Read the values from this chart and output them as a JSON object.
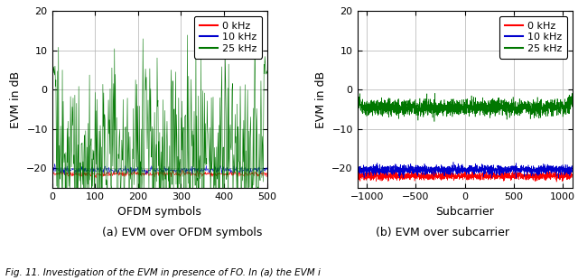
{
  "left_plot": {
    "xlabel": "OFDM symbols",
    "ylabel": "EVM in dB",
    "xlim": [
      0,
      500
    ],
    "ylim": [
      -25,
      20
    ],
    "yticks": [
      -20,
      -10,
      0,
      10,
      20
    ],
    "xticks": [
      0,
      100,
      200,
      300,
      400,
      500
    ],
    "caption": "(a) EVM over OFDM symbols",
    "series": [
      {
        "label": "0 kHz",
        "color": "#ff0000",
        "mean": -21.5,
        "noise": 0.35,
        "n": 500
      },
      {
        "label": "10 kHz",
        "color": "#0000cd",
        "mean": -20.5,
        "noise": 0.4,
        "n": 500
      },
      {
        "label": "25 kHz",
        "color": "#007700",
        "mean": -17.0,
        "noise": 11.0,
        "n": 500,
        "edge_spike_mean": 5.0,
        "edge_spike_noise": 1.5,
        "edge_n": 8
      }
    ]
  },
  "right_plot": {
    "xlabel": "Subcarrier",
    "ylabel": "EVM in dB",
    "xlim": [
      -1100,
      1100
    ],
    "ylim": [
      -25,
      20
    ],
    "yticks": [
      -20,
      -10,
      0,
      10,
      20
    ],
    "xticks": [
      -1000,
      -500,
      0,
      500,
      1000
    ],
    "caption": "(b) EVM over subcarrier",
    "series": [
      {
        "label": "0 kHz",
        "color": "#ff0000",
        "mean": -22.0,
        "noise": 0.5,
        "n": 2048
      },
      {
        "label": "10 kHz",
        "color": "#0000cd",
        "mean": -20.5,
        "noise": 0.6,
        "n": 2048
      },
      {
        "label": "25 kHz",
        "color": "#007700",
        "mean": -4.5,
        "noise": 1.0,
        "n": 2048,
        "edge_spike_mean": -3.0,
        "edge_spike_noise": 1.0,
        "edge_n": 30
      }
    ]
  },
  "legend_labels": [
    "0 kHz",
    "10 kHz",
    "25 kHz"
  ],
  "legend_colors": [
    "#ff0000",
    "#0000cd",
    "#007700"
  ],
  "fig_caption": "Fig. 11. Investigation of the EVM in presence of FO. In (a) the EVM i",
  "background_color": "#ffffff",
  "grid_color": "#b0b0b0",
  "font_size": 9
}
